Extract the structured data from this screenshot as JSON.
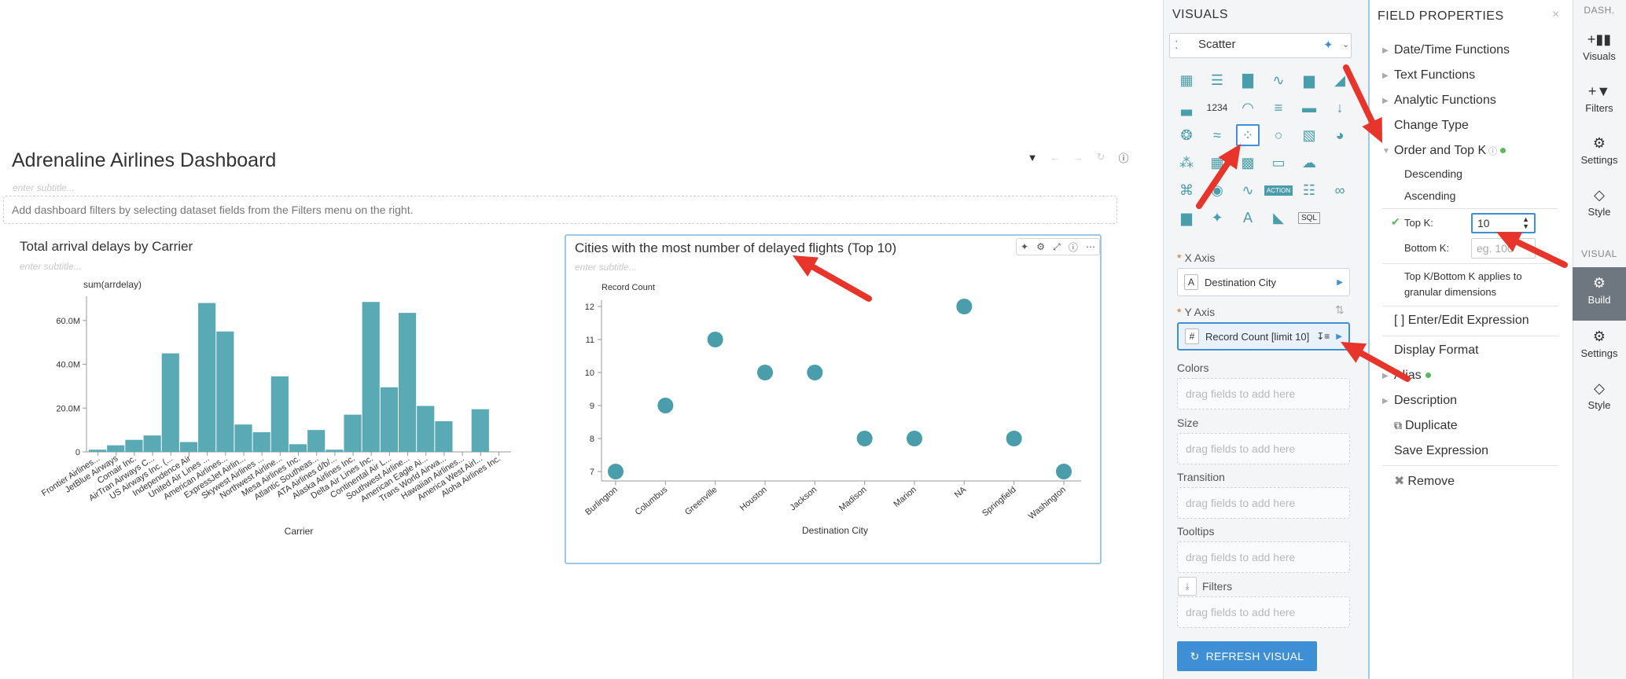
{
  "dashboard": {
    "title": "Adrenaline Airlines Dashboard",
    "subtitle_placeholder": "enter subtitle...",
    "filter_hint": "Add dashboard filters by selecting dataset fields from the Filters menu on the right."
  },
  "visual1": {
    "title": "Total arrival delays by Carrier",
    "subtitle_placeholder": "enter subtitle...",
    "chart_data": {
      "type": "bar",
      "title": "Total arrival delays by Carrier",
      "ylabel": "sum(arrdelay)",
      "xlabel": "Carrier",
      "ylim": [
        0,
        70000000
      ],
      "y_ticks": [
        "0",
        "20.0M",
        "40.0M",
        "60.0M"
      ],
      "categories": [
        "Frontier Airlines...",
        "JetBlue Airways",
        "Comair Inc.",
        "AirTran Airways C...",
        "US Airways Inc. (...",
        "Independence Air",
        "United Air Lines ...",
        "American Airlines...",
        "ExpressJet Airlin...",
        "Skywest Airlines ...",
        "Northwest Airline...",
        "Mesa Airlines Inc.",
        "Atlantic Southeas...",
        "ATA Airlines d/b/...",
        "Alaska Airlines Inc.",
        "Delta Air Lines Inc.",
        "Continental Air L...",
        "Southwest Airline...",
        "American Eagle Ai...",
        "Trans World Airwa...",
        "Hawaiian Airlines...",
        "America West Airl...",
        "Aloha Airlines Inc."
      ],
      "values": [
        1000000,
        3000000,
        5500000,
        7500000,
        45000000,
        4500000,
        68000000,
        55000000,
        12500000,
        9000000,
        34500000,
        3500000,
        10000000,
        1000000,
        17000000,
        68500000,
        29500000,
        63500000,
        21000000,
        14000000,
        0,
        19500000,
        0
      ]
    }
  },
  "visual2": {
    "title": "Cities with the most number of delayed flights (Top 10)",
    "subtitle_placeholder": "enter subtitle...",
    "chart_data": {
      "type": "scatter",
      "title": "Cities with the most number of delayed flights (Top 10)",
      "ylabel": "Record Count",
      "xlabel": "Destination City",
      "ylim": [
        7,
        12
      ],
      "y_ticks": [
        "7",
        "8",
        "9",
        "10",
        "11",
        "12"
      ],
      "categories": [
        "Burlington",
        "Columbus",
        "Greenville",
        "Houston",
        "Jackson",
        "Madison",
        "Marion",
        "NA",
        "Springfield",
        "Washington"
      ],
      "values": [
        7,
        9,
        11,
        10,
        10,
        8,
        8,
        12,
        8,
        7
      ],
      "color": "#4a9daa"
    }
  },
  "visuals_panel": {
    "header": "VISUALS",
    "selected_type": "Scatter",
    "gauge_label": "1234",
    "x_axis": {
      "label": "X Axis",
      "field": "Destination City",
      "type": "A"
    },
    "y_axis": {
      "label": "Y Axis",
      "field": "Record Count [limit 10]",
      "type": "#"
    },
    "shelves": [
      {
        "label": "Colors",
        "placeholder": "drag fields to add here"
      },
      {
        "label": "Size",
        "placeholder": "drag fields to add here"
      },
      {
        "label": "Transition",
        "placeholder": "drag fields to add here"
      },
      {
        "label": "Tooltips",
        "placeholder": "drag fields to add here"
      },
      {
        "label": "Filters",
        "placeholder": "drag fields to add here"
      }
    ],
    "refresh_label": "REFRESH VISUAL",
    "action_label": "ACTION",
    "sql_label": "SQL"
  },
  "field_properties": {
    "header": "FIELD PROPERTIES",
    "items": {
      "datetime": "Date/Time Functions",
      "text": "Text Functions",
      "analytic": "Analytic Functions",
      "change_type": "Change Type",
      "order_topk": "Order and Top K",
      "descending": "Descending",
      "ascending": "Ascending",
      "topk_label": "Top K:",
      "topk_value": "10",
      "bottomk_label": "Bottom K:",
      "bottomk_placeholder": "eg. 100",
      "note_line1": "Top K/Bottom K applies to",
      "note_line2": "granular dimensions",
      "enter_edit": "[ ] Enter/Edit Expression",
      "display_format": "Display Format",
      "alias": "Alias",
      "description": "Description",
      "duplicate": "Duplicate",
      "save_expression": "Save Expression",
      "remove": "Remove"
    }
  },
  "side_tabs": {
    "dash_section": "DASH.",
    "visuals": "Visuals",
    "filters": "Filters",
    "settings": "Settings",
    "style": "Style",
    "visual_section": "VISUAL",
    "build": "Build",
    "settings2": "Settings",
    "style2": "Style"
  },
  "colors": {
    "bar": "#5aaab5",
    "accent": "#3f8fd6",
    "arrow": "#e8352b"
  }
}
